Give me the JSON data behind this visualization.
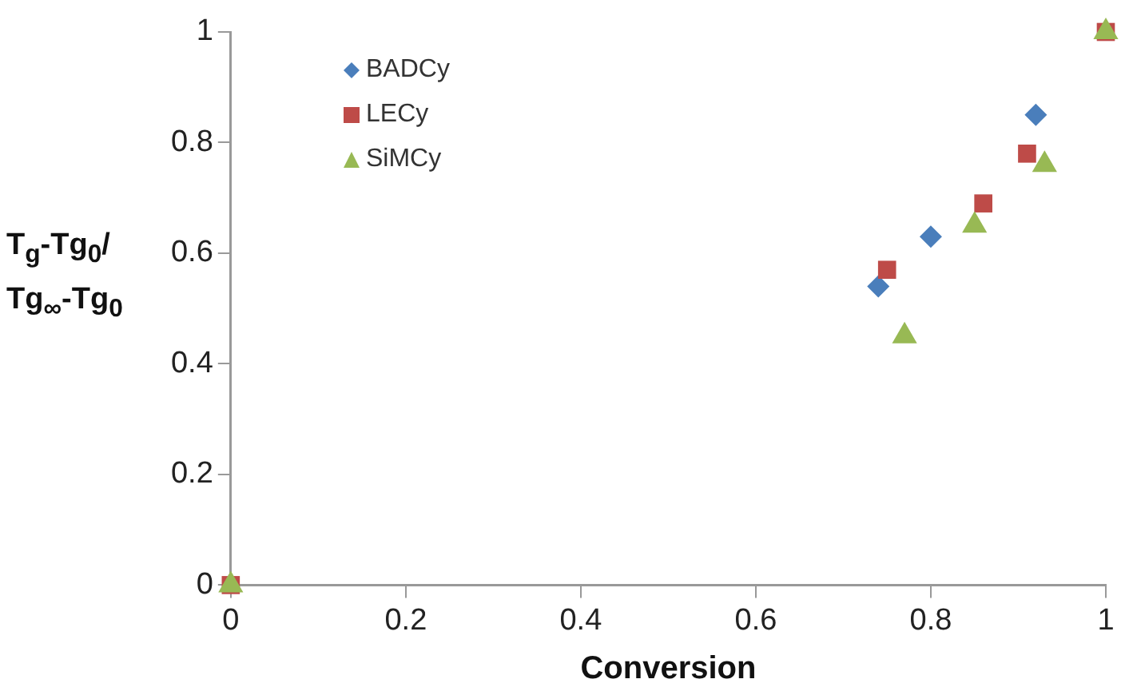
{
  "chart_data": {
    "type": "scatter",
    "xlabel": "Conversion",
    "ylabel": "T$_{g}$-Tg$_{0}$/ Tg$_{∞}$-Tg$_{0}$",
    "xlim": [
      0,
      1
    ],
    "xticks": [
      0,
      0.2,
      0.4,
      0.6,
      0.8,
      1
    ],
    "ylim": [
      0,
      1
    ],
    "yticks": [
      0,
      0.2,
      0.4,
      0.6,
      0.8,
      1
    ],
    "grid": false,
    "legend": "top left",
    "series": [
      {
        "name": "BADCy",
        "color": "#4a7ebb",
        "marker": "diamond",
        "x": [
          0.74,
          0.8,
          0.92
        ],
        "values": [
          0.54,
          0.63,
          0.85
        ]
      },
      {
        "name": "LECy",
        "color": "#be4b48",
        "marker": "square",
        "x": [
          0,
          0.75,
          0.86,
          0.91,
          1
        ],
        "values": [
          0,
          0.57,
          0.69,
          0.78,
          1
        ]
      },
      {
        "name": "SiMCy",
        "color": "#98b954",
        "marker": "triangle",
        "x": [
          0,
          0.77,
          0.85,
          0.93,
          1
        ],
        "values": [
          0,
          0.45,
          0.65,
          0.76,
          1
        ]
      }
    ]
  }
}
